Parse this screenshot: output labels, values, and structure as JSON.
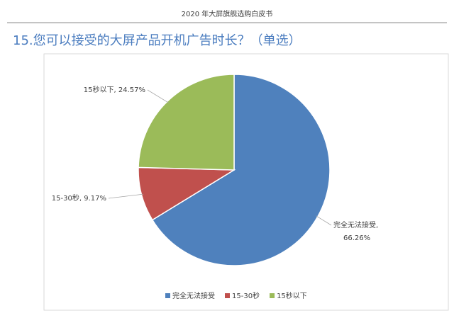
{
  "header": {
    "title": "2020 年大屏旗舰选购白皮书"
  },
  "chart_data": {
    "type": "pie",
    "title": "15.您可以接受的大屏产品开机广告时长？（单选）",
    "categories": [
      "完全无法接受",
      "15-30秒",
      "15秒以下"
    ],
    "values": [
      66.26,
      9.17,
      24.57
    ],
    "value_labels": [
      "66.26%",
      "9.17%",
      "24.57%"
    ],
    "colors": [
      "#4f81bd",
      "#c0504d",
      "#9bbb59"
    ],
    "legend": "bottom"
  }
}
